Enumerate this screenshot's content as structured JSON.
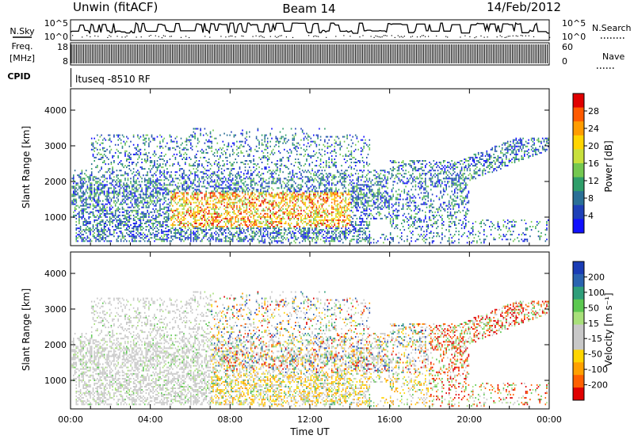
{
  "header": {
    "station": "Unwin (fitACF)",
    "beam": "Beam 14",
    "date": "14/Feb/2012"
  },
  "left_labels": {
    "nsky": "N.Sky",
    "freq_line1": "Freq.",
    "freq_line2": "[MHz]",
    "cpid": "CPID"
  },
  "right_labels": {
    "nsearch": "N.Search",
    "nave": "Nave"
  },
  "chart_data": [
    {
      "type": "line",
      "panel": "noise",
      "series": [
        {
          "name": "N.Sky"
        },
        {
          "name": "N.Search"
        }
      ],
      "left_ticks": [
        "10^5",
        "10^0"
      ],
      "right_ticks": [
        "10^5",
        "10^0"
      ]
    },
    {
      "type": "line",
      "panel": "frequency",
      "left_ticks": [
        "18",
        "8"
      ],
      "right_ticks": [
        "60",
        "0"
      ]
    },
    {
      "type": "table",
      "panel": "cpid",
      "program": "ltuseq -8510 RF"
    },
    {
      "type": "heatmap",
      "panel": "power",
      "ylabel": "Slant Range [km]",
      "ylim": [
        200,
        4600
      ],
      "yticks": [
        1000,
        2000,
        3000,
        4000
      ],
      "xlim": [
        0,
        24
      ],
      "colorbar": {
        "label": "Power [dB]",
        "ticks": [
          "28",
          "24",
          "20",
          "16",
          "12",
          "8",
          "4"
        ],
        "colors": [
          "#e00000",
          "#ff5a00",
          "#ff9c00",
          "#ffd500",
          "#c8e03c",
          "#74c850",
          "#2f9e6a",
          "#2a6f96",
          "#1e40b8",
          "#1010ff"
        ]
      }
    },
    {
      "type": "heatmap",
      "panel": "velocity",
      "ylabel": "Slant Range [km]",
      "ylim": [
        200,
        4600
      ],
      "yticks": [
        1000,
        2000,
        3000,
        4000
      ],
      "xlim": [
        0,
        24
      ],
      "colorbar": {
        "label": "Velocity [m s⁻¹]",
        "ticks": [
          "200",
          "100",
          "50",
          "15",
          "-15",
          "-50",
          "-100",
          "-200"
        ],
        "colors": [
          "#1a3cb5",
          "#2a63b0",
          "#2f9e7a",
          "#5cc850",
          "#a8e07a",
          "#c8c8c8",
          "#c8c8c8",
          "#ffd500",
          "#ffa000",
          "#ff6000",
          "#e00000"
        ]
      },
      "xlabel": "Time UT",
      "xticks": [
        "00:00",
        "04:00",
        "08:00",
        "12:00",
        "16:00",
        "20:00",
        "00:00"
      ]
    }
  ]
}
